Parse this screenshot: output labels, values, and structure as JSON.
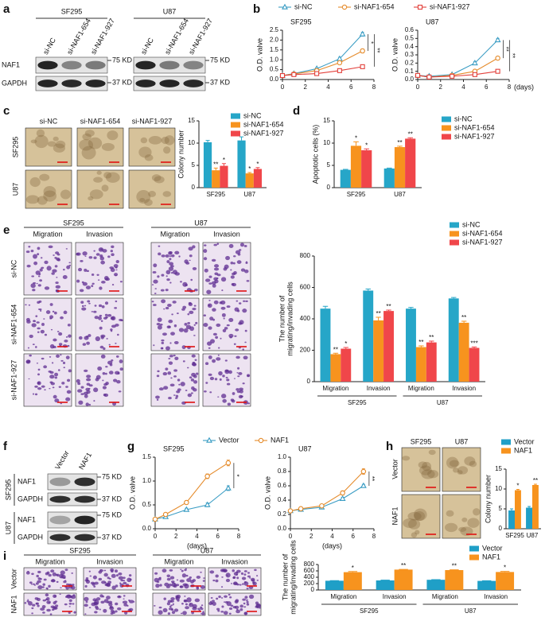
{
  "panels": {
    "a": {
      "letter": "a",
      "groups": [
        {
          "title": "SF295",
          "lanes": [
            "si-NC",
            "si-NAF1-654",
            "si-NAF1-927"
          ],
          "markers": [
            "75 KD",
            "37 KD"
          ]
        },
        {
          "title": "U87",
          "lanes": [
            "si-NC",
            "si-NAF1-654",
            "si-NAF1-927"
          ],
          "markers": [
            "75 KD",
            "37 KD"
          ]
        }
      ],
      "rows": [
        "NAF1",
        "GAPDH"
      ]
    },
    "c": {
      "columns": [
        "si-NC",
        "si-NAF1-654",
        "si-NAF1-927"
      ],
      "rows": [
        "SF295",
        "U87"
      ]
    },
    "e": {
      "groups": [
        {
          "title": "SF295",
          "columns": [
            "Migration",
            "Invasion"
          ]
        },
        {
          "title": "U87",
          "columns": [
            "Migration",
            "Invasion"
          ]
        }
      ],
      "rows": [
        "si-NC",
        "si-NAF1-654",
        "si-NAF1-927"
      ]
    },
    "f": {
      "letter": "f",
      "columns": [
        "Vector",
        "NAF1"
      ],
      "groups": [
        {
          "title": "SF295",
          "rows": [
            "NAF1",
            "GAPDH"
          ],
          "markers": [
            "75 KD",
            "37 KD"
          ]
        },
        {
          "title": "U87",
          "rows": [
            "NAF1",
            "GAPDH"
          ],
          "markers": [
            "75 KD",
            "37 KD"
          ]
        }
      ]
    },
    "h": {
      "columns": [
        "SF295",
        "U87"
      ],
      "rows": [
        "Vector",
        "NAF1"
      ]
    },
    "i": {
      "groups": [
        {
          "title": "SF295",
          "columns": [
            "Migration",
            "Invasion"
          ]
        },
        {
          "title": "U87",
          "columns": [
            "Migration",
            "Invasion"
          ]
        }
      ],
      "rows": [
        "Vector",
        "NAF1"
      ]
    }
  },
  "chart_data": [
    {
      "type": "line",
      "panel_label": "b",
      "legend": [
        {
          "name": "si-NC",
          "color": "#3b9dc4",
          "marker": "triangle"
        },
        {
          "name": "si-NAF1-654",
          "color": "#e58b2b",
          "marker": "circle"
        },
        {
          "name": "si-NAF1-927",
          "color": "#e2403b",
          "marker": "square"
        }
      ],
      "subplots": [
        {
          "title": "SF295",
          "ylabel": "O.D. valve",
          "x": [
            0,
            1,
            3,
            5,
            7
          ],
          "xlim": [
            0,
            8
          ],
          "xticks": [
            0,
            2,
            4,
            6,
            8
          ],
          "ylim": [
            0,
            2.5
          ],
          "yticks": [
            {
              "value": 0,
              "label": "0.0"
            },
            0.5,
            {
              "value": 1,
              "label": "1.0"
            },
            1.5,
            {
              "value": 2,
              "label": "2.0"
            },
            2.5
          ],
          "series": [
            {
              "values": [
                0.2,
                0.3,
                0.55,
                1.05,
                2.3
              ],
              "errors": [
                0.02,
                0.03,
                0.05,
                0.08,
                0.1
              ]
            },
            {
              "values": [
                0.2,
                0.28,
                0.45,
                0.85,
                1.45
              ],
              "errors": [
                0.02,
                0.03,
                0.04,
                0.07,
                0.1
              ]
            },
            {
              "values": [
                0.2,
                0.25,
                0.3,
                0.45,
                0.65
              ],
              "errors": [
                0.02,
                0.02,
                0.03,
                0.04,
                0.06
              ]
            }
          ],
          "annotations": [
            "*",
            "**"
          ]
        },
        {
          "title": "U87",
          "ylabel": "O.D. valve",
          "xlabel": "(days)",
          "x": [
            0,
            1,
            3,
            5,
            7
          ],
          "xlim": [
            0,
            8
          ],
          "xticks": [
            0,
            2,
            4,
            6,
            8
          ],
          "ylim": [
            0,
            0.6
          ],
          "yticks": [
            {
              "value": 0,
              "label": "0.0"
            },
            0.1,
            0.2,
            0.3,
            0.4,
            0.5,
            0.6
          ],
          "series": [
            {
              "values": [
                0.05,
                0.04,
                0.06,
                0.2,
                0.48
              ],
              "errors": [
                0.005,
                0.005,
                0.01,
                0.02,
                0.02
              ]
            },
            {
              "values": [
                0.05,
                0.03,
                0.05,
                0.1,
                0.26
              ],
              "errors": [
                0.005,
                0.005,
                0.01,
                0.02,
                0.02
              ]
            },
            {
              "values": [
                0.05,
                0.03,
                0.04,
                0.06,
                0.1
              ],
              "errors": [
                0.005,
                0.005,
                0.005,
                0.01,
                0.005
              ]
            }
          ],
          "annotations": [
            "**",
            "**"
          ]
        }
      ]
    },
    {
      "type": "bar",
      "panel_label": "c",
      "ylabel": "Colony number",
      "categories": [
        "SF295",
        "U87"
      ],
      "ylim": [
        0,
        15
      ],
      "yticks": [
        0,
        5,
        10,
        15
      ],
      "series": [
        {
          "name": "si-NC",
          "color": "#26a6c8",
          "values": [
            10.2,
            10.6
          ],
          "errors": [
            0.4,
            0.8
          ]
        },
        {
          "name": "si-NAF1-654",
          "color": "#f7931e",
          "values": [
            3.9,
            3.2
          ],
          "errors": [
            0.5,
            0.2
          ],
          "significance": [
            "**",
            "*"
          ]
        },
        {
          "name": "si-NAF1-927",
          "color": "#f0464a",
          "values": [
            4.9,
            4.2
          ],
          "errors": [
            0.5,
            0.3
          ],
          "significance": [
            "*",
            "*"
          ]
        }
      ]
    },
    {
      "type": "bar",
      "panel_label": "d",
      "ylabel": "Apoptotic cells (%)",
      "categories": [
        "SF295",
        "U87"
      ],
      "ylim": [
        0,
        15
      ],
      "yticks": [
        0,
        5,
        10,
        15
      ],
      "series": [
        {
          "name": "si-NC",
          "color": "#26a6c8",
          "values": [
            4.0,
            4.3
          ],
          "errors": [
            0.1,
            0.1
          ]
        },
        {
          "name": "si-NAF1-654",
          "color": "#f7931e",
          "values": [
            9.4,
            9.1
          ],
          "errors": [
            0.9,
            0.2
          ],
          "significance": [
            "*",
            "**"
          ]
        },
        {
          "name": "si-NAF1-927",
          "color": "#f0464a",
          "values": [
            8.4,
            11.0
          ],
          "errors": [
            0.3,
            0.2
          ],
          "significance": [
            "*",
            "**"
          ]
        }
      ]
    },
    {
      "type": "bar",
      "panel_label": "e",
      "ylabel_lines": [
        "The number of",
        "migrating/invading cells"
      ],
      "categories": [
        "Migration",
        "Invasion",
        "Migration",
        "Invasion"
      ],
      "groups": [
        "SF295",
        "U87"
      ],
      "ylim": [
        0,
        800
      ],
      "yticks": [
        0,
        200,
        400,
        600,
        800
      ],
      "series": [
        {
          "name": "si-NC",
          "color": "#26a6c8",
          "values": [
            465,
            580,
            465,
            530
          ],
          "errors": [
            15,
            10,
            8,
            6
          ]
        },
        {
          "name": "si-NAF1-654",
          "color": "#f7931e",
          "values": [
            175,
            390,
            220,
            375
          ],
          "errors": [
            6,
            20,
            8,
            10
          ],
          "significance": [
            "**",
            "**",
            "**",
            "**"
          ]
        },
        {
          "name": "si-NAF1-927",
          "color": "#f0464a",
          "values": [
            210,
            450,
            250,
            215
          ],
          "errors": [
            8,
            6,
            8,
            6
          ],
          "significance": [
            "*",
            "**",
            "**",
            "***"
          ]
        }
      ]
    },
    {
      "type": "line",
      "panel_label": "g",
      "legend": [
        {
          "name": "Vector",
          "color": "#3b9dc4",
          "marker": "triangle"
        },
        {
          "name": "NAF1",
          "color": "#e58b2b",
          "marker": "circle"
        }
      ],
      "subplots": [
        {
          "title": "SF295",
          "ylabel": "O.D. valve",
          "xlabel": "(days)",
          "x": [
            0,
            1,
            3,
            5,
            7
          ],
          "xlim": [
            0,
            8
          ],
          "xticks": [
            0,
            2,
            4,
            6,
            8
          ],
          "ylim": [
            0,
            1.5
          ],
          "yticks": [
            {
              "value": 0,
              "label": "0.0"
            },
            0.5,
            {
              "value": 1,
              "label": "1.0"
            },
            1.5
          ],
          "series": [
            {
              "values": [
                0.2,
                0.25,
                0.4,
                0.5,
                0.85
              ],
              "errors": [
                0.02,
                0.03,
                0.03,
                0.04,
                0.05
              ]
            },
            {
              "values": [
                0.2,
                0.3,
                0.55,
                1.1,
                1.38
              ],
              "errors": [
                0.02,
                0.03,
                0.04,
                0.05,
                0.06
              ]
            }
          ],
          "annotations": [
            "*"
          ]
        },
        {
          "title": "U87",
          "ylabel": "O.D. valve",
          "xlabel": "(days)",
          "x": [
            0,
            1,
            3,
            5,
            7
          ],
          "xlim": [
            0,
            8
          ],
          "xticks": [
            0,
            2,
            4,
            6,
            8
          ],
          "ylim": [
            0,
            1
          ],
          "yticks": [
            {
              "value": 0,
              "label": "0.0"
            },
            0.2,
            0.4,
            0.6,
            0.8,
            {
              "value": 1,
              "label": "1.0"
            }
          ],
          "series": [
            {
              "values": [
                0.25,
                0.27,
                0.3,
                0.42,
                0.6
              ],
              "errors": [
                0.01,
                0.01,
                0.02,
                0.02,
                0.02
              ]
            },
            {
              "values": [
                0.25,
                0.28,
                0.32,
                0.5,
                0.8
              ],
              "errors": [
                0.01,
                0.01,
                0.02,
                0.03,
                0.04
              ]
            }
          ],
          "annotations": [
            "**"
          ]
        }
      ]
    },
    {
      "type": "bar",
      "panel_label": "h",
      "ylabel": "Colony number",
      "categories": [
        "SF295",
        "U87"
      ],
      "ylim": [
        0,
        15
      ],
      "yticks": [
        0,
        5,
        10,
        15
      ],
      "series": [
        {
          "name": "Vector",
          "color": "#1f9fc7",
          "values": [
            4.6,
            5.3
          ],
          "errors": [
            0.4,
            0.3
          ]
        },
        {
          "name": "NAF1",
          "color": "#f7931e",
          "values": [
            9.7,
            11.0
          ],
          "errors": [
            0.2,
            0.2
          ],
          "significance": [
            "*",
            "**"
          ]
        }
      ]
    },
    {
      "type": "bar",
      "panel_label": "i",
      "ylabel_lines": [
        "The number of",
        "migrating/invading cells"
      ],
      "categories": [
        "Migration",
        "Invasion",
        "Migration",
        "Invasion"
      ],
      "groups": [
        "SF295",
        "U87"
      ],
      "ylim": [
        0,
        800
      ],
      "yticks": [
        0,
        200,
        400,
        600,
        800
      ],
      "series": [
        {
          "name": "Vector",
          "color": "#1f9fc7",
          "values": [
            290,
            300,
            320,
            285
          ],
          "errors": [
            5,
            10,
            6,
            5
          ]
        },
        {
          "name": "NAF1",
          "color": "#f7931e",
          "values": [
            560,
            640,
            625,
            565
          ],
          "errors": [
            20,
            8,
            10,
            20
          ],
          "significance": [
            "*",
            "**",
            "**",
            "*"
          ]
        }
      ]
    }
  ]
}
